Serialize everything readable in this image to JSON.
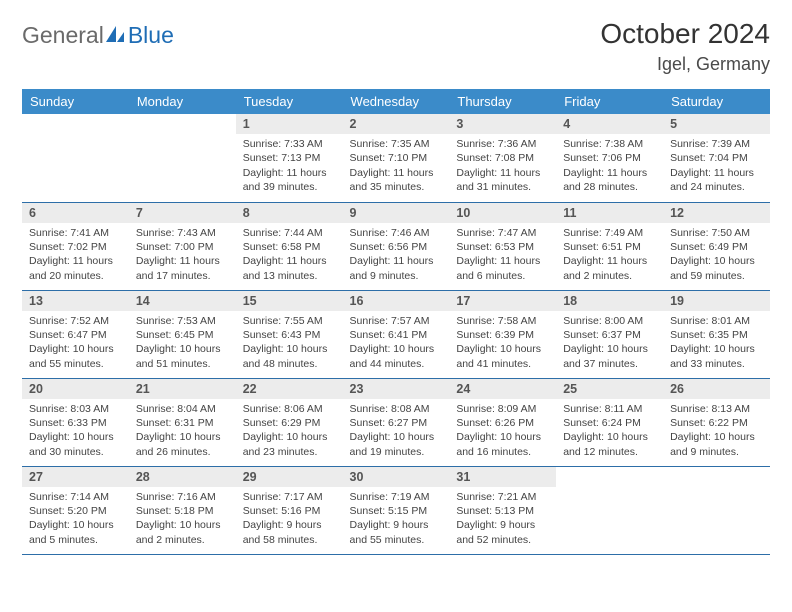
{
  "logo": {
    "part1": "General",
    "part2": "Blue"
  },
  "title": "October 2024",
  "location": "Igel, Germany",
  "header_color": "#3b8bc9",
  "daynum_bg": "#ececec",
  "row_border_color": "#2d6ea8",
  "weekdays": [
    "Sunday",
    "Monday",
    "Tuesday",
    "Wednesday",
    "Thursday",
    "Friday",
    "Saturday"
  ],
  "weeks": [
    [
      null,
      null,
      {
        "n": "1",
        "sr": "7:33 AM",
        "ss": "7:13 PM",
        "dl": "11 hours and 39 minutes."
      },
      {
        "n": "2",
        "sr": "7:35 AM",
        "ss": "7:10 PM",
        "dl": "11 hours and 35 minutes."
      },
      {
        "n": "3",
        "sr": "7:36 AM",
        "ss": "7:08 PM",
        "dl": "11 hours and 31 minutes."
      },
      {
        "n": "4",
        "sr": "7:38 AM",
        "ss": "7:06 PM",
        "dl": "11 hours and 28 minutes."
      },
      {
        "n": "5",
        "sr": "7:39 AM",
        "ss": "7:04 PM",
        "dl": "11 hours and 24 minutes."
      }
    ],
    [
      {
        "n": "6",
        "sr": "7:41 AM",
        "ss": "7:02 PM",
        "dl": "11 hours and 20 minutes."
      },
      {
        "n": "7",
        "sr": "7:43 AM",
        "ss": "7:00 PM",
        "dl": "11 hours and 17 minutes."
      },
      {
        "n": "8",
        "sr": "7:44 AM",
        "ss": "6:58 PM",
        "dl": "11 hours and 13 minutes."
      },
      {
        "n": "9",
        "sr": "7:46 AM",
        "ss": "6:56 PM",
        "dl": "11 hours and 9 minutes."
      },
      {
        "n": "10",
        "sr": "7:47 AM",
        "ss": "6:53 PM",
        "dl": "11 hours and 6 minutes."
      },
      {
        "n": "11",
        "sr": "7:49 AM",
        "ss": "6:51 PM",
        "dl": "11 hours and 2 minutes."
      },
      {
        "n": "12",
        "sr": "7:50 AM",
        "ss": "6:49 PM",
        "dl": "10 hours and 59 minutes."
      }
    ],
    [
      {
        "n": "13",
        "sr": "7:52 AM",
        "ss": "6:47 PM",
        "dl": "10 hours and 55 minutes."
      },
      {
        "n": "14",
        "sr": "7:53 AM",
        "ss": "6:45 PM",
        "dl": "10 hours and 51 minutes."
      },
      {
        "n": "15",
        "sr": "7:55 AM",
        "ss": "6:43 PM",
        "dl": "10 hours and 48 minutes."
      },
      {
        "n": "16",
        "sr": "7:57 AM",
        "ss": "6:41 PM",
        "dl": "10 hours and 44 minutes."
      },
      {
        "n": "17",
        "sr": "7:58 AM",
        "ss": "6:39 PM",
        "dl": "10 hours and 41 minutes."
      },
      {
        "n": "18",
        "sr": "8:00 AM",
        "ss": "6:37 PM",
        "dl": "10 hours and 37 minutes."
      },
      {
        "n": "19",
        "sr": "8:01 AM",
        "ss": "6:35 PM",
        "dl": "10 hours and 33 minutes."
      }
    ],
    [
      {
        "n": "20",
        "sr": "8:03 AM",
        "ss": "6:33 PM",
        "dl": "10 hours and 30 minutes."
      },
      {
        "n": "21",
        "sr": "8:04 AM",
        "ss": "6:31 PM",
        "dl": "10 hours and 26 minutes."
      },
      {
        "n": "22",
        "sr": "8:06 AM",
        "ss": "6:29 PM",
        "dl": "10 hours and 23 minutes."
      },
      {
        "n": "23",
        "sr": "8:08 AM",
        "ss": "6:27 PM",
        "dl": "10 hours and 19 minutes."
      },
      {
        "n": "24",
        "sr": "8:09 AM",
        "ss": "6:26 PM",
        "dl": "10 hours and 16 minutes."
      },
      {
        "n": "25",
        "sr": "8:11 AM",
        "ss": "6:24 PM",
        "dl": "10 hours and 12 minutes."
      },
      {
        "n": "26",
        "sr": "8:13 AM",
        "ss": "6:22 PM",
        "dl": "10 hours and 9 minutes."
      }
    ],
    [
      {
        "n": "27",
        "sr": "7:14 AM",
        "ss": "5:20 PM",
        "dl": "10 hours and 5 minutes."
      },
      {
        "n": "28",
        "sr": "7:16 AM",
        "ss": "5:18 PM",
        "dl": "10 hours and 2 minutes."
      },
      {
        "n": "29",
        "sr": "7:17 AM",
        "ss": "5:16 PM",
        "dl": "9 hours and 58 minutes."
      },
      {
        "n": "30",
        "sr": "7:19 AM",
        "ss": "5:15 PM",
        "dl": "9 hours and 55 minutes."
      },
      {
        "n": "31",
        "sr": "7:21 AM",
        "ss": "5:13 PM",
        "dl": "9 hours and 52 minutes."
      },
      null,
      null
    ]
  ],
  "labels": {
    "sunrise": "Sunrise: ",
    "sunset": "Sunset: ",
    "daylight": "Daylight: "
  }
}
